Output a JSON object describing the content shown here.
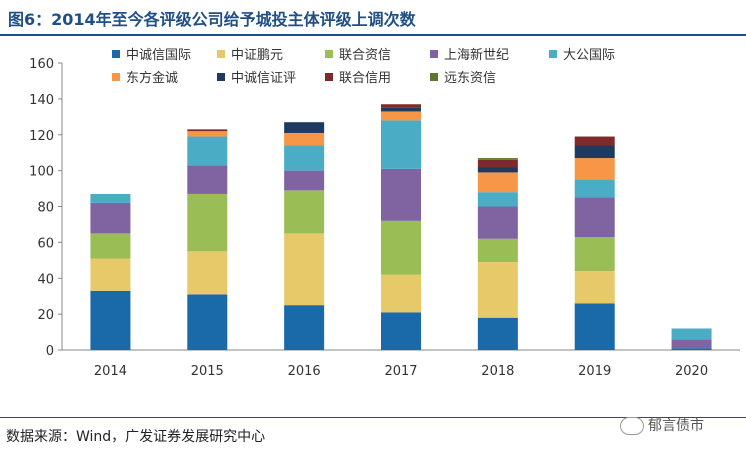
{
  "header": {
    "title": "图6：2014年至今各评级公司给予城投主体评级上调次数"
  },
  "footer": {
    "source": "数据来源：Wind，广发证券发展研究中心",
    "watermark": "郁言债市"
  },
  "chart_data": {
    "type": "bar",
    "stacked": true,
    "title": "2014年至今各评级公司给予城投主体评级上调次数",
    "xlabel": "",
    "ylabel": "",
    "ylim": [
      0,
      160
    ],
    "yticks": [
      0,
      20,
      40,
      60,
      80,
      100,
      120,
      140,
      160
    ],
    "categories": [
      "2014",
      "2015",
      "2016",
      "2017",
      "2018",
      "2019",
      "2020"
    ],
    "series": [
      {
        "name": "中诚信国际",
        "color": "#1a69a8",
        "values": [
          33,
          31,
          25,
          21,
          18,
          26,
          1
        ]
      },
      {
        "name": "中证鹏元",
        "color": "#e8c96a",
        "values": [
          18,
          24,
          40,
          21,
          31,
          18,
          0
        ]
      },
      {
        "name": "联合资信",
        "color": "#9bbd56",
        "values": [
          14,
          32,
          24,
          30,
          13,
          19,
          0
        ]
      },
      {
        "name": "上海新世纪",
        "color": "#8064a2",
        "values": [
          17,
          16,
          11,
          29,
          18,
          22,
          5
        ]
      },
      {
        "name": "大公国际",
        "color": "#4bacc6",
        "values": [
          5,
          16,
          14,
          27,
          8,
          10,
          6
        ]
      },
      {
        "name": "东方金诚",
        "color": "#f79646",
        "values": [
          0,
          3,
          7,
          5,
          11,
          12,
          0
        ]
      },
      {
        "name": "中诚信证评",
        "color": "#1f3a5f",
        "values": [
          0,
          0,
          6,
          2,
          3,
          7,
          0
        ]
      },
      {
        "name": "联合信用",
        "color": "#7f2a2a",
        "values": [
          0,
          1,
          0,
          2,
          4,
          5,
          0
        ]
      },
      {
        "name": "远东资信",
        "color": "#5a7a2a",
        "values": [
          0,
          0,
          0,
          0,
          1,
          0,
          0
        ]
      }
    ],
    "legend": "top"
  }
}
